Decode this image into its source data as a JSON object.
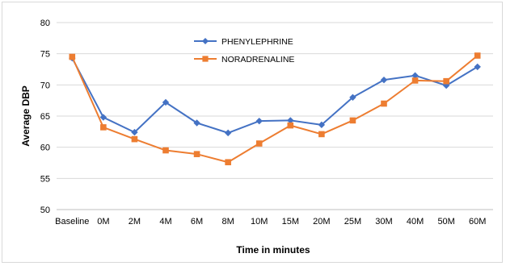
{
  "chart_data": {
    "type": "line",
    "title": "",
    "xlabel": "Time in minutes",
    "ylabel": "Average DBP",
    "ylim": [
      50,
      80
    ],
    "yticks": [
      50,
      55,
      60,
      65,
      70,
      75,
      80
    ],
    "categories": [
      "Baseline",
      "0M",
      "2M",
      "4M",
      "6M",
      "8M",
      "10M",
      "15M",
      "20M",
      "25M",
      "30M",
      "40M",
      "50M",
      "60M"
    ],
    "grid": "horizontal",
    "legend_position": "top-center",
    "series": [
      {
        "name": "PHENYLEPHRINE",
        "color": "#4472c4",
        "marker": "diamond",
        "values": [
          74.3,
          64.8,
          62.4,
          67.2,
          63.9,
          62.3,
          64.2,
          64.3,
          63.6,
          68.0,
          70.8,
          71.5,
          69.9,
          72.9
        ]
      },
      {
        "name": "NORADRENALINE",
        "color": "#ed7d31",
        "marker": "square",
        "values": [
          74.5,
          63.2,
          61.3,
          59.5,
          58.9,
          57.6,
          60.6,
          63.5,
          62.1,
          64.3,
          67.0,
          70.7,
          70.6,
          74.7
        ]
      }
    ]
  }
}
